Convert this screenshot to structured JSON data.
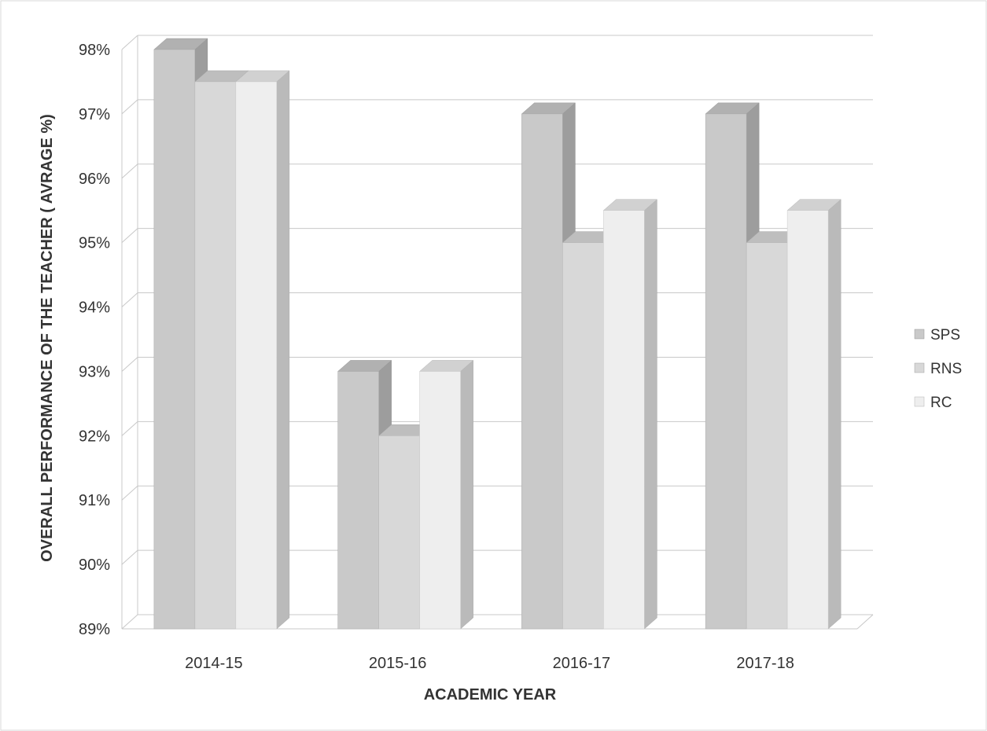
{
  "chart_data": {
    "type": "bar",
    "categories": [
      "2014-15",
      "2015-16",
      "2016-17",
      "2017-18"
    ],
    "series": [
      {
        "name": "SPS",
        "values": [
          98,
          93,
          97,
          97
        ],
        "color": "#c9c9c9"
      },
      {
        "name": "RNS",
        "values": [
          97.5,
          92,
          95,
          95
        ],
        "color": "#d8d8d8"
      },
      {
        "name": "RC",
        "values": [
          97.5,
          93,
          95.5,
          95.5
        ],
        "color": "#eeeeee"
      }
    ],
    "y_ticks": [
      "89%",
      "90%",
      "91%",
      "92%",
      "93%",
      "94%",
      "95%",
      "96%",
      "97%",
      "98%"
    ],
    "ylim": [
      89,
      98
    ],
    "xlabel": "ACADEMIC YEAR",
    "ylabel": "OVERALL PERFORMANCE OF THE TEACHER ( AVRAGE %)",
    "legend_position": "right",
    "grid": true,
    "style": "3d-clustered-column"
  }
}
